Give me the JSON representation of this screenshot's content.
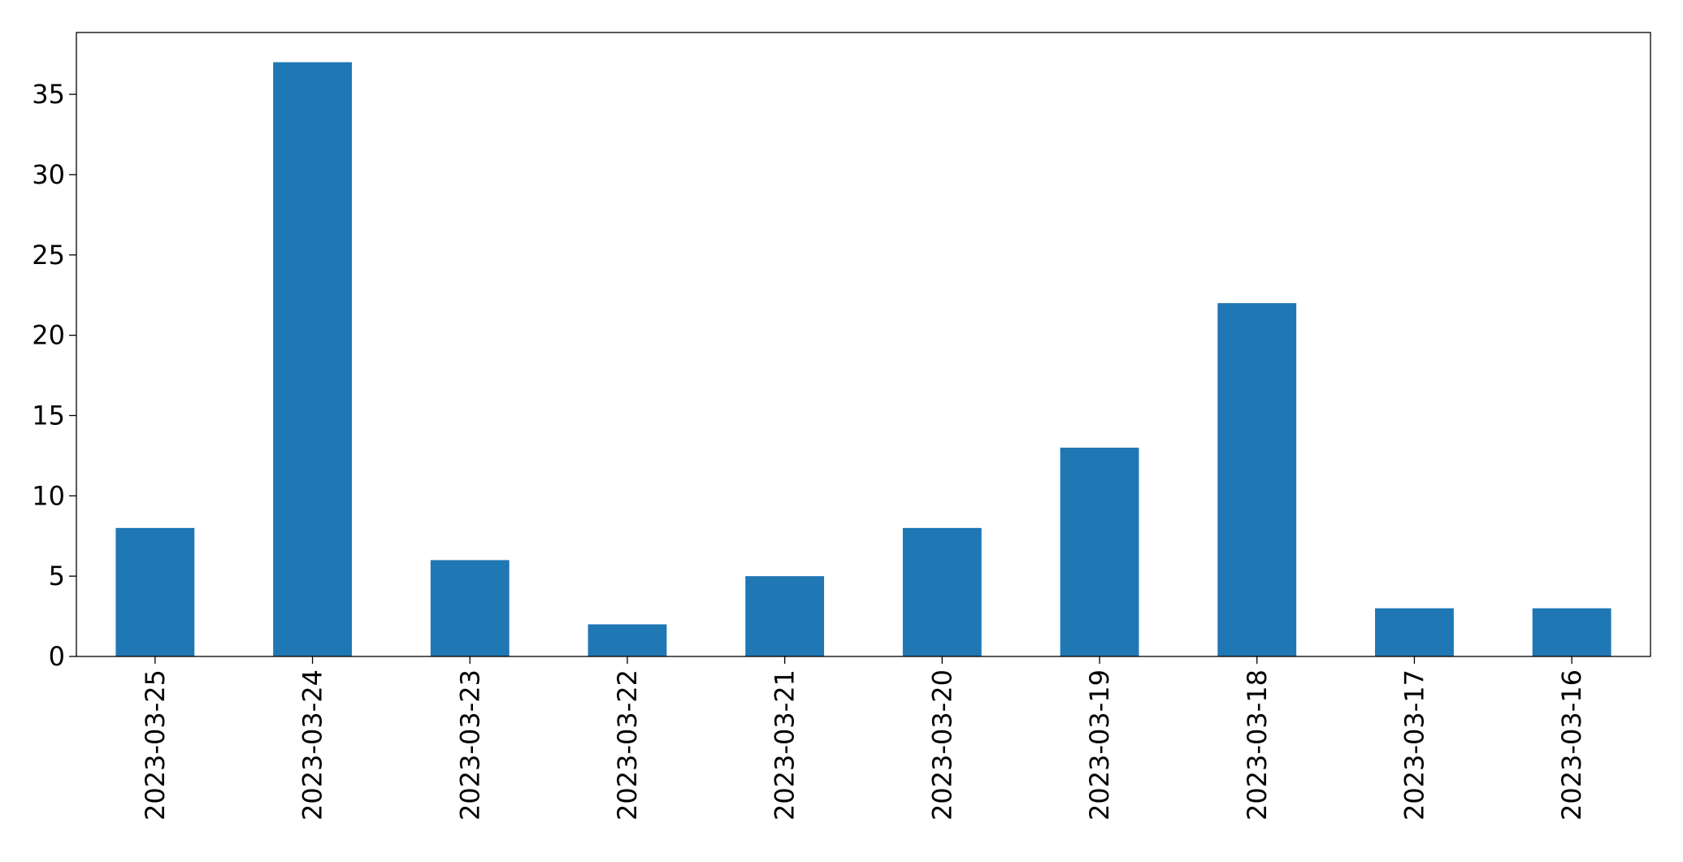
{
  "chart_data": {
    "type": "bar",
    "categories": [
      "2023-03-25",
      "2023-03-24",
      "2023-03-23",
      "2023-03-22",
      "2023-03-21",
      "2023-03-20",
      "2023-03-19",
      "2023-03-18",
      "2023-03-17",
      "2023-03-16"
    ],
    "values": [
      8,
      37,
      6,
      2,
      5,
      8,
      13,
      22,
      3,
      3
    ],
    "color": "#1f77b4",
    "ylim": [
      0,
      38.85
    ],
    "yticks": [
      0,
      5,
      10,
      15,
      20,
      25,
      30,
      35
    ],
    "grid": false
  }
}
